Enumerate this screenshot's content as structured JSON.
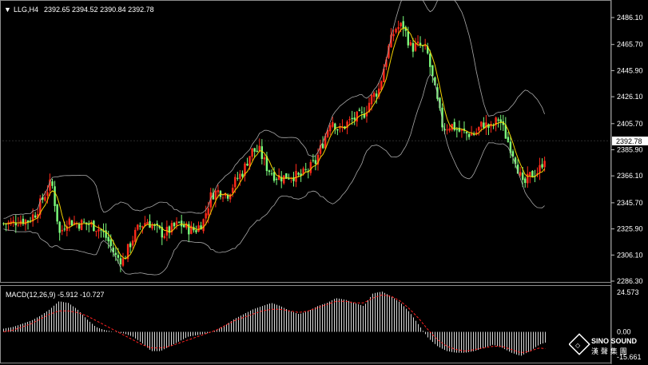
{
  "window": {
    "symbol_tf": "LLG,H4",
    "ohlc": "2392.65 2394.52 2390.84 2392.78",
    "current_price": "2392.78"
  },
  "price_axis": {
    "ticks": [
      "2486.10",
      "2465.70",
      "2445.90",
      "2426.10",
      "2405.70",
      "2385.90",
      "2366.10",
      "2345.70",
      "2325.90",
      "2306.10",
      "2286.30"
    ],
    "ylim": [
      2286.3,
      2486.1
    ]
  },
  "macd_panel": {
    "label": "MACD(12,26,9) -5.912 -10.727",
    "ticks": [
      "24.573",
      "0.00",
      "-15.661"
    ],
    "ylim": [
      -15.661,
      24.573
    ]
  },
  "logo": {
    "text": "SINO SOUND",
    "sub": "漢 聲 集 團"
  },
  "colors": {
    "background": "#000000",
    "bull": "#ff2a1a",
    "bear": "#7dff7d",
    "ma": "#f5d200",
    "bands": "#a9a9a9",
    "macd_signal": "#ff2020",
    "macd_hist": "#d8d8d8"
  },
  "chart_data": [
    {
      "type": "candlestick",
      "title": "LLG,H4",
      "overlays": [
        "moving average",
        "Bollinger bands"
      ],
      "approx_close": [
        [
          0,
          2330
        ],
        [
          10,
          2330
        ],
        [
          20,
          2333
        ],
        [
          30,
          2332
        ],
        [
          40,
          2338
        ],
        [
          50,
          2350
        ],
        [
          60,
          2362
        ],
        [
          70,
          2322
        ],
        [
          80,
          2333
        ],
        [
          90,
          2330
        ],
        [
          100,
          2330
        ],
        [
          110,
          2329
        ],
        [
          120,
          2326
        ],
        [
          130,
          2318
        ],
        [
          140,
          2305
        ],
        [
          150,
          2302
        ],
        [
          160,
          2317
        ],
        [
          170,
          2328
        ],
        [
          180,
          2332
        ],
        [
          190,
          2326
        ],
        [
          200,
          2322
        ],
        [
          210,
          2326
        ],
        [
          220,
          2330
        ],
        [
          230,
          2326
        ],
        [
          240,
          2325
        ],
        [
          250,
          2332
        ],
        [
          260,
          2352
        ],
        [
          270,
          2355
        ],
        [
          280,
          2352
        ],
        [
          290,
          2362
        ],
        [
          300,
          2370
        ],
        [
          310,
          2385
        ],
        [
          320,
          2385
        ],
        [
          330,
          2372
        ],
        [
          340,
          2366
        ],
        [
          350,
          2365
        ],
        [
          360,
          2367
        ],
        [
          370,
          2365
        ],
        [
          380,
          2370
        ],
        [
          390,
          2376
        ],
        [
          400,
          2392
        ],
        [
          410,
          2410
        ],
        [
          420,
          2400
        ],
        [
          430,
          2406
        ],
        [
          440,
          2410
        ],
        [
          450,
          2412
        ],
        [
          460,
          2425
        ],
        [
          470,
          2432
        ],
        [
          480,
          2460
        ],
        [
          490,
          2478
        ],
        [
          500,
          2480
        ],
        [
          510,
          2463
        ],
        [
          520,
          2465
        ],
        [
          530,
          2460
        ],
        [
          540,
          2430
        ],
        [
          550,
          2402
        ],
        [
          560,
          2405
        ],
        [
          570,
          2400
        ],
        [
          580,
          2398
        ],
        [
          590,
          2398
        ],
        [
          600,
          2406
        ],
        [
          610,
          2402
        ],
        [
          620,
          2410
        ],
        [
          630,
          2394
        ],
        [
          640,
          2380
        ],
        [
          650,
          2358
        ],
        [
          660,
          2367
        ],
        [
          670,
          2370
        ],
        [
          680,
          2385
        ],
        [
          684,
          2392.78
        ]
      ]
    },
    {
      "type": "bar",
      "title": "MACD(12,26,9)",
      "series": [
        {
          "name": "MACD",
          "approx_values": [
            2,
            3,
            5,
            7,
            10,
            14,
            19,
            18,
            14,
            8,
            3,
            1,
            0,
            -1,
            -3,
            -7,
            -12,
            -12,
            -9,
            -6,
            -3,
            -2,
            -1,
            1,
            4,
            8,
            11,
            14,
            16,
            18,
            16,
            13,
            11,
            13,
            16,
            18,
            21,
            20,
            18,
            16,
            24,
            25,
            22,
            18,
            12,
            4,
            -4,
            -9,
            -12,
            -13,
            -13,
            -12,
            -10,
            -8,
            -10,
            -13,
            -15,
            -12,
            -8,
            -6
          ]
        },
        {
          "name": "Signal",
          "approx_values": [
            0,
            1,
            3,
            5,
            8,
            11,
            13,
            13,
            12,
            10,
            7,
            4,
            1,
            -2,
            -5,
            -8,
            -10,
            -10,
            -9,
            -7,
            -5,
            -3,
            -1,
            1,
            4,
            7,
            9,
            11,
            13,
            14,
            14,
            13,
            12,
            13,
            15,
            17,
            19,
            19,
            18,
            18,
            21,
            23,
            22,
            19,
            14,
            8,
            1,
            -5,
            -9,
            -11,
            -12,
            -11,
            -10,
            -9,
            -9,
            -11,
            -13,
            -12,
            -10,
            -10.7
          ]
        }
      ]
    }
  ]
}
